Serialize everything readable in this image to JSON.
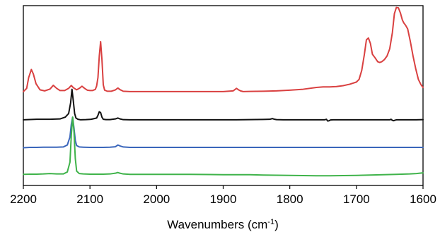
{
  "chart_data": {
    "type": "line",
    "xlabel": "Wavenumbers (cm",
    "xlabel_sup": "-1",
    "xlabel_close": ")",
    "xlim": [
      2200,
      1600
    ],
    "x_reversed": true,
    "ylim": [
      0,
      1
    ],
    "y_axis_visible": false,
    "grid": false,
    "legend": false,
    "x_ticks": [
      2200,
      2100,
      2000,
      1900,
      1800,
      1700,
      1600
    ],
    "x_tick_labels": [
      "2200",
      "2100",
      "2000",
      "1900",
      "1800",
      "1700",
      "1600"
    ],
    "series": [
      {
        "color": "#d94040",
        "x": [
          2200,
          2195,
          2192,
          2188,
          2185,
          2181,
          2175,
          2168,
          2160,
          2155,
          2150,
          2145,
          2138,
          2132,
          2128,
          2125,
          2120,
          2116,
          2112,
          2108,
          2104,
          2100,
          2096,
          2092,
          2090,
          2088,
          2086,
          2084,
          2082,
          2080,
          2078,
          2074,
          2068,
          2062,
          2058,
          2055,
          2050,
          2040,
          2030,
          2010,
          1990,
          1960,
          1930,
          1900,
          1885,
          1880,
          1877,
          1874,
          1870,
          1860,
          1840,
          1820,
          1800,
          1780,
          1760,
          1750,
          1740,
          1730,
          1720,
          1710,
          1700,
          1696,
          1692,
          1688,
          1685,
          1682,
          1679,
          1676,
          1672,
          1668,
          1665,
          1662,
          1658,
          1654,
          1650,
          1646,
          1643,
          1640,
          1637,
          1634,
          1631,
          1629,
          1626,
          1623,
          1619,
          1615,
          1611,
          1607,
          1603,
          1600
        ],
        "y": [
          0.522,
          0.54,
          0.6,
          0.645,
          0.62,
          0.566,
          0.532,
          0.526,
          0.536,
          0.557,
          0.54,
          0.528,
          0.528,
          0.54,
          0.556,
          0.544,
          0.532,
          0.54,
          0.552,
          0.54,
          0.53,
          0.528,
          0.528,
          0.534,
          0.553,
          0.6,
          0.72,
          0.8,
          0.7,
          0.56,
          0.53,
          0.524,
          0.524,
          0.531,
          0.542,
          0.533,
          0.524,
          0.522,
          0.522,
          0.522,
          0.522,
          0.522,
          0.522,
          0.522,
          0.526,
          0.54,
          0.532,
          0.526,
          0.522,
          0.523,
          0.524,
          0.526,
          0.53,
          0.535,
          0.545,
          0.548,
          0.548,
          0.55,
          0.555,
          0.563,
          0.575,
          0.59,
          0.64,
          0.73,
          0.81,
          0.82,
          0.79,
          0.73,
          0.71,
          0.688,
          0.684,
          0.688,
          0.7,
          0.72,
          0.76,
          0.85,
          0.955,
          0.99,
          0.988,
          0.96,
          0.92,
          0.905,
          0.89,
          0.87,
          0.8,
          0.72,
          0.65,
          0.59,
          0.56,
          0.545
        ]
      },
      {
        "color": "#111111",
        "x": [
          2200,
          2180,
          2160,
          2145,
          2137,
          2132,
          2129,
          2127,
          2125,
          2123,
          2121,
          2118,
          2114,
          2106,
          2098,
          2090,
          2088,
          2086,
          2084,
          2082,
          2080,
          2076,
          2070,
          2062,
          2058,
          2055,
          2050,
          2040,
          2020,
          2000,
          1980,
          1950,
          1920,
          1900,
          1880,
          1860,
          1840,
          1830,
          1826,
          1823,
          1820,
          1810,
          1800,
          1780,
          1760,
          1748,
          1745,
          1743,
          1741,
          1739,
          1735,
          1720,
          1700,
          1680,
          1660,
          1650,
          1648,
          1646,
          1644,
          1642,
          1640,
          1630,
          1620,
          1610,
          1600
        ],
        "y": [
          0.365,
          0.368,
          0.368,
          0.37,
          0.38,
          0.4,
          0.46,
          0.535,
          0.47,
          0.4,
          0.375,
          0.368,
          0.365,
          0.366,
          0.368,
          0.375,
          0.39,
          0.41,
          0.405,
          0.38,
          0.368,
          0.366,
          0.366,
          0.37,
          0.375,
          0.37,
          0.366,
          0.365,
          0.365,
          0.365,
          0.365,
          0.365,
          0.365,
          0.365,
          0.365,
          0.366,
          0.367,
          0.368,
          0.372,
          0.368,
          0.366,
          0.365,
          0.365,
          0.365,
          0.365,
          0.365,
          0.368,
          0.358,
          0.36,
          0.364,
          0.365,
          0.365,
          0.365,
          0.365,
          0.365,
          0.365,
          0.368,
          0.362,
          0.36,
          0.363,
          0.365,
          0.365,
          0.365,
          0.365,
          0.366
        ]
      },
      {
        "color": "#3a66bb",
        "x": [
          2200,
          2190,
          2180,
          2170,
          2160,
          2150,
          2140,
          2134,
          2130,
          2128,
          2126,
          2124,
          2122,
          2120,
          2116,
          2110,
          2100,
          2090,
          2080,
          2070,
          2062,
          2058,
          2055,
          2050,
          2040,
          2020,
          2000,
          1980,
          1950,
          1920,
          1900,
          1880,
          1850,
          1820,
          1800,
          1780,
          1760,
          1740,
          1720,
          1700,
          1680,
          1660,
          1640,
          1620,
          1600
        ],
        "y": [
          0.21,
          0.212,
          0.212,
          0.213,
          0.213,
          0.213,
          0.214,
          0.225,
          0.27,
          0.34,
          0.38,
          0.32,
          0.25,
          0.222,
          0.214,
          0.213,
          0.212,
          0.212,
          0.212,
          0.213,
          0.215,
          0.225,
          0.22,
          0.214,
          0.212,
          0.212,
          0.212,
          0.212,
          0.212,
          0.212,
          0.212,
          0.212,
          0.212,
          0.212,
          0.212,
          0.212,
          0.212,
          0.212,
          0.212,
          0.212,
          0.212,
          0.212,
          0.212,
          0.212,
          0.212
        ]
      },
      {
        "color": "#3fb34a",
        "x": [
          2200,
          2190,
          2180,
          2170,
          2160,
          2150,
          2140,
          2134,
          2130,
          2128,
          2126,
          2124,
          2122,
          2120,
          2116,
          2110,
          2100,
          2090,
          2080,
          2070,
          2062,
          2058,
          2055,
          2050,
          2040,
          2020,
          2000,
          1980,
          1950,
          1920,
          1900,
          1880,
          1860,
          1840,
          1820,
          1800,
          1780,
          1760,
          1740,
          1720,
          1700,
          1680,
          1660,
          1640,
          1620,
          1610,
          1600
        ],
        "y": [
          0.062,
          0.063,
          0.063,
          0.064,
          0.066,
          0.064,
          0.064,
          0.075,
          0.13,
          0.28,
          0.38,
          0.3,
          0.15,
          0.08,
          0.066,
          0.064,
          0.063,
          0.063,
          0.063,
          0.064,
          0.068,
          0.072,
          0.068,
          0.064,
          0.062,
          0.062,
          0.062,
          0.062,
          0.062,
          0.061,
          0.06,
          0.06,
          0.06,
          0.058,
          0.057,
          0.056,
          0.055,
          0.054,
          0.054,
          0.055,
          0.056,
          0.058,
          0.06,
          0.062,
          0.064,
          0.066,
          0.07
        ]
      }
    ]
  }
}
